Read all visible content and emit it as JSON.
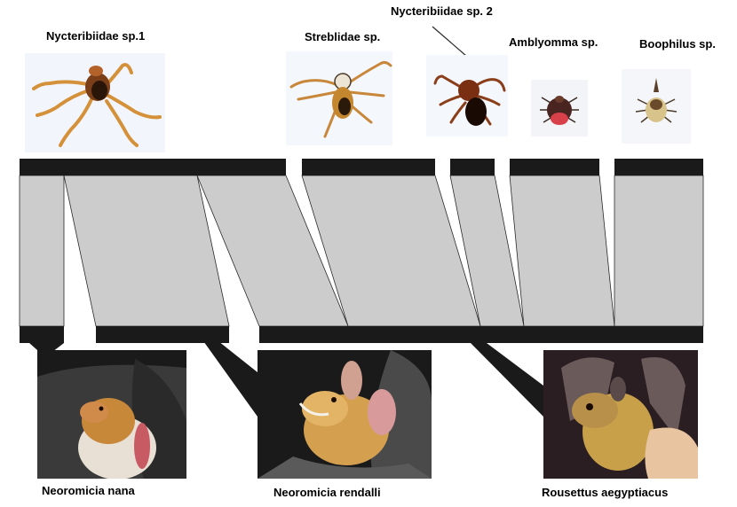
{
  "parasites": [
    {
      "name": "Nycteribiidae sp.1"
    },
    {
      "name": "Streblidae sp."
    },
    {
      "name": "Nycteribiidae sp. 2"
    },
    {
      "name": "Amblyomma sp."
    },
    {
      "name": "Boophilus sp."
    }
  ],
  "hosts": [
    {
      "name": "Neoromicia nana"
    },
    {
      "name": "Neoromicia rendalli"
    },
    {
      "name": "Rousettus aegyptiacus"
    }
  ],
  "colors": {
    "bar": "#1a1a1a",
    "link": "#cccccc",
    "link_stroke": "#2a2a2a"
  }
}
